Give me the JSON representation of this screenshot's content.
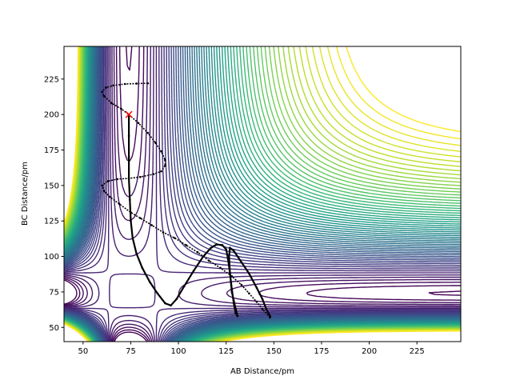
{
  "chart_data": {
    "type": "contour",
    "title": "",
    "xlabel": "AB Distance/pm",
    "ylabel": "BC Distance/pm",
    "xlim": [
      40,
      248
    ],
    "ylim": [
      40,
      248
    ],
    "xticks": [
      50,
      75,
      100,
      125,
      150,
      175,
      200,
      225
    ],
    "yticks": [
      50,
      75,
      100,
      125,
      150,
      175,
      200,
      225
    ],
    "grid": false,
    "colormap": "viridis",
    "contour_levels": 60,
    "start_marker": {
      "x": 74,
      "y": 200,
      "symbol": "x",
      "color": "#ff0000"
    },
    "trajectory_color": "#000000",
    "trajectory": [
      [
        84,
        222
      ],
      [
        78,
        221.8
      ],
      [
        72,
        221.5
      ],
      [
        66,
        220.5
      ],
      [
        62,
        219
      ],
      [
        60,
        216
      ],
      [
        61,
        213
      ],
      [
        65,
        208
      ],
      [
        70,
        204
      ],
      [
        74,
        200
      ],
      [
        79,
        194
      ],
      [
        84,
        187
      ],
      [
        88,
        180
      ],
      [
        91,
        174
      ],
      [
        93,
        168
      ],
      [
        93,
        164
      ],
      [
        91,
        160
      ],
      [
        87,
        158
      ],
      [
        80,
        156
      ],
      [
        74,
        155
      ],
      [
        68,
        154.5
      ],
      [
        63,
        153
      ],
      [
        60,
        150
      ],
      [
        61,
        146
      ],
      [
        64,
        142
      ],
      [
        69,
        137
      ],
      [
        75,
        131
      ],
      [
        80,
        127
      ],
      [
        86,
        122
      ],
      [
        92,
        117
      ],
      [
        98,
        113
      ],
      [
        104,
        108
      ],
      [
        110,
        103
      ],
      [
        116,
        97
      ],
      [
        122,
        92
      ],
      [
        128,
        86
      ],
      [
        133,
        80
      ],
      [
        137,
        74
      ],
      [
        141,
        68
      ],
      [
        144,
        63
      ],
      [
        148,
        57
      ]
    ],
    "trajectory2": [
      [
        74,
        199
      ],
      [
        74,
        185
      ],
      [
        74,
        170
      ],
      [
        74,
        155
      ],
      [
        74.5,
        140
      ],
      [
        75,
        125
      ],
      [
        76,
        113
      ],
      [
        78,
        102
      ],
      [
        81,
        92
      ],
      [
        85,
        82
      ],
      [
        89,
        74
      ],
      [
        93,
        67
      ],
      [
        96,
        65.5
      ],
      [
        99,
        70
      ],
      [
        103,
        79
      ],
      [
        108,
        90
      ],
      [
        113,
        100
      ],
      [
        117,
        106
      ],
      [
        120,
        108.5
      ],
      [
        123,
        108
      ],
      [
        125,
        105
      ],
      [
        126,
        98
      ],
      [
        127,
        88
      ],
      [
        128,
        77
      ],
      [
        129,
        67
      ],
      [
        130,
        60
      ],
      [
        131,
        58
      ],
      [
        130,
        63
      ],
      [
        128,
        75
      ],
      [
        127,
        88
      ],
      [
        126.5,
        100
      ],
      [
        127,
        106
      ],
      [
        129,
        104
      ],
      [
        133,
        96
      ],
      [
        137,
        88
      ],
      [
        141,
        78
      ],
      [
        144,
        70
      ],
      [
        146,
        63
      ],
      [
        148,
        58
      ]
    ]
  }
}
